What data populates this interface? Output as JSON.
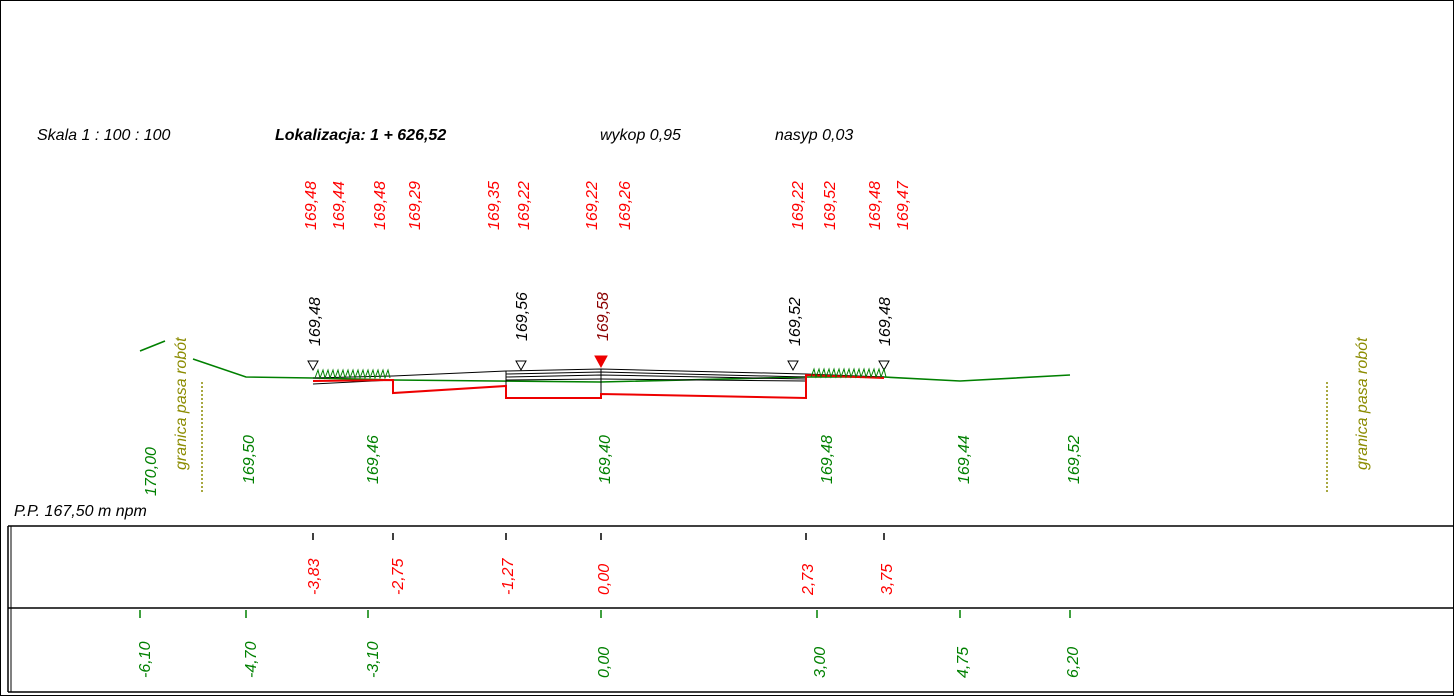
{
  "header": {
    "scale": "Skala 1 : 100 : 100",
    "location": "Lokalizacja:  1 + 626,52",
    "cut": "wykop  0,95",
    "fill": "nasyp  0,03"
  },
  "datum": "P.P. 167,50 m npm",
  "boundary_label": "granica pasa robót",
  "colors": {
    "design": "#ff0000",
    "terrain": "#008000",
    "structure": "#000000",
    "axis_marker": "#cc0000",
    "boundary": "#8b8b00"
  },
  "design_elevations": [
    "169,48",
    "169,44",
    "169,48",
    "169,29",
    "169,35",
    "169,22",
    "169,22",
    "169,26",
    "169,22",
    "169,52",
    "169,48",
    "169,47"
  ],
  "point_elevations": [
    {
      "value": "169,48",
      "marker": "open"
    },
    {
      "value": "169,56",
      "marker": "open"
    },
    {
      "value": "169,58",
      "marker": "filled"
    },
    {
      "value": "169,52",
      "marker": "open"
    },
    {
      "value": "169,48",
      "marker": "open"
    }
  ],
  "terrain_elevations": [
    "170,00",
    "169,50",
    "169,46",
    "169,40",
    "169,48",
    "169,44",
    "169,52"
  ],
  "design_offsets": [
    "-3,83",
    "-2,75",
    "-1,27",
    "0,00",
    "2,73",
    "3,75"
  ],
  "terrain_offsets": [
    "-6,10",
    "-4,70",
    "-3,10",
    "0,00",
    "3,00",
    "4,75",
    "6,20"
  ]
}
